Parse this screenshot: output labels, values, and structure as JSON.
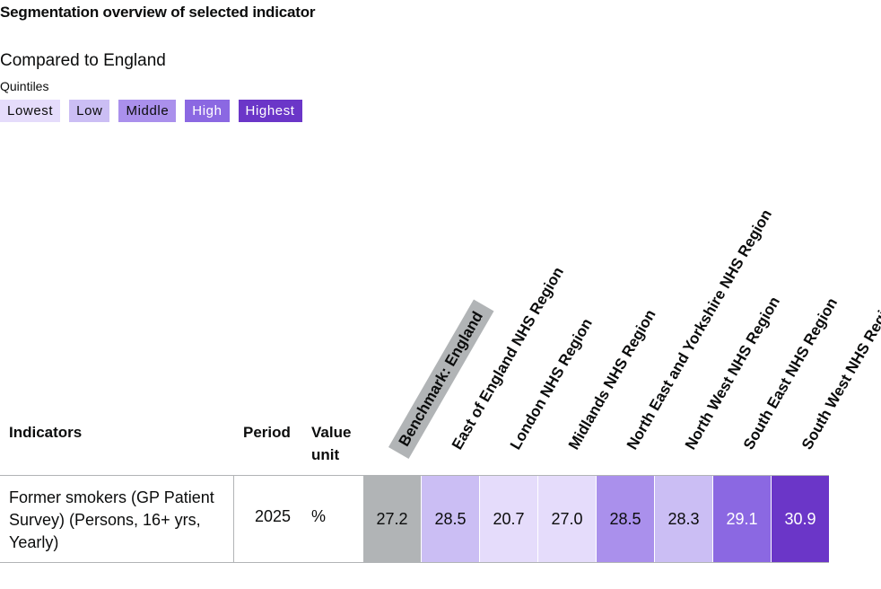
{
  "heading": "Segmentation overview of selected indicator",
  "comparison": "Compared to England",
  "legend": {
    "label": "Quintiles",
    "items": [
      {
        "label": "Lowest",
        "color": "#e5dcfb",
        "text": "#0b0c0c"
      },
      {
        "label": "Low",
        "color": "#cbbef4",
        "text": "#0b0c0c"
      },
      {
        "label": "Middle",
        "color": "#aa90ec",
        "text": "#0b0c0c"
      },
      {
        "label": "High",
        "color": "#8b68e2",
        "text": "#ffffff"
      },
      {
        "label": "Highest",
        "color": "#6b36c8",
        "text": "#ffffff"
      }
    ]
  },
  "table": {
    "headers": {
      "indicators": "Indicators",
      "period": "Period",
      "value_unit": "Value unit"
    },
    "columns": [
      "Benchmark: England",
      "East of England NHS Region",
      "London NHS Region",
      "Midlands NHS Region",
      "North East and Yorkshire NHS Region",
      "North West NHS Region",
      "South East NHS Region",
      "South West NHS Region"
    ],
    "rows": [
      {
        "indicator": "Former smokers (GP Patient Survey) (Persons, 16+ yrs, Yearly)",
        "period": "2025",
        "unit": "%",
        "values": [
          {
            "value": "27.2",
            "quintile": "Benchmark",
            "color": "#b1b4b6",
            "text": "#0b0c0c"
          },
          {
            "value": "28.5",
            "quintile": "Low",
            "color": "#cbbef4",
            "text": "#0b0c0c"
          },
          {
            "value": "20.7",
            "quintile": "Lowest",
            "color": "#e5dcfb",
            "text": "#0b0c0c"
          },
          {
            "value": "27.0",
            "quintile": "Lowest",
            "color": "#e5dcfb",
            "text": "#0b0c0c"
          },
          {
            "value": "28.5",
            "quintile": "Middle",
            "color": "#aa90ec",
            "text": "#0b0c0c"
          },
          {
            "value": "28.3",
            "quintile": "Low",
            "color": "#cbbef4",
            "text": "#0b0c0c"
          },
          {
            "value": "29.1",
            "quintile": "High",
            "color": "#8b68e2",
            "text": "#ffffff"
          },
          {
            "value": "30.9",
            "quintile": "Highest",
            "color": "#6b36c8",
            "text": "#ffffff"
          }
        ]
      }
    ]
  }
}
